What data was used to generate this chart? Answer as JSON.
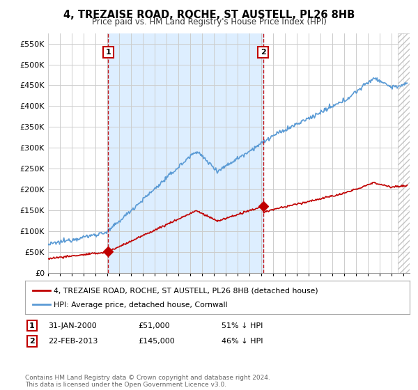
{
  "title": "4, TREZAISE ROAD, ROCHE, ST AUSTELL, PL26 8HB",
  "subtitle": "Price paid vs. HM Land Registry's House Price Index (HPI)",
  "yticks": [
    0,
    50000,
    100000,
    150000,
    200000,
    250000,
    300000,
    350000,
    400000,
    450000,
    500000,
    550000
  ],
  "ylim": [
    0,
    575000
  ],
  "hpi_color": "#5b9bd5",
  "price_color": "#c00000",
  "vline_color": "#c00000",
  "shade_color": "#ddeeff",
  "background_color": "#ffffff",
  "grid_color": "#cccccc",
  "legend_entry1": "4, TREZAISE ROAD, ROCHE, ST AUSTELL, PL26 8HB (detached house)",
  "legend_entry2": "HPI: Average price, detached house, Cornwall",
  "transaction1_label": "1",
  "transaction1_date": "31-JAN-2000",
  "transaction1_price": "£51,000",
  "transaction1_hpi": "51% ↓ HPI",
  "transaction1_year": 2000.08,
  "transaction1_value": 51000,
  "transaction2_label": "2",
  "transaction2_date": "22-FEB-2013",
  "transaction2_price": "£145,000",
  "transaction2_hpi": "46% ↓ HPI",
  "transaction2_year": 2013.13,
  "transaction2_value": 145000,
  "footer": "Contains HM Land Registry data © Crown copyright and database right 2024.\nThis data is licensed under the Open Government Licence v3.0.",
  "xmin": 1995,
  "xmax": 2025.5,
  "hatch_start": 2024.5
}
